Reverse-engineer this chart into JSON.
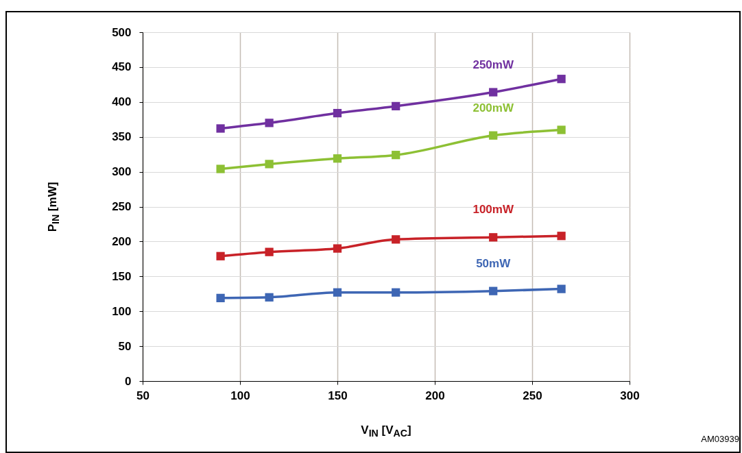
{
  "chart_data": {
    "type": "line",
    "xlabel": "V$_{IN}$ [V$_{AC}$]",
    "ylabel": "P$_{IN}$  [mW]",
    "x": [
      90,
      115,
      150,
      180,
      230,
      265
    ],
    "series": [
      {
        "name": "250mW",
        "color": "#7030a0",
        "values": [
          362,
          370,
          384,
          394,
          414,
          433
        ]
      },
      {
        "name": "200mW",
        "color": "#8dc034",
        "values": [
          304,
          311,
          319,
          324,
          352,
          360
        ]
      },
      {
        "name": "100mW",
        "color": "#c82228",
        "values": [
          179,
          185,
          190,
          203,
          206,
          208
        ]
      },
      {
        "name": "50mW",
        "color": "#3e66b4",
        "values": [
          119,
          120,
          127,
          127,
          129,
          132
        ]
      }
    ],
    "xlim": [
      50,
      300
    ],
    "xticks": [
      50,
      100,
      150,
      200,
      250,
      300
    ],
    "ylim": [
      0,
      500
    ],
    "yticks": [
      0,
      50,
      100,
      150,
      200,
      250,
      300,
      350,
      400,
      450,
      500
    ],
    "grid": true,
    "marker": "square",
    "line_style": "solid",
    "annotations": [
      "AM03939"
    ]
  }
}
